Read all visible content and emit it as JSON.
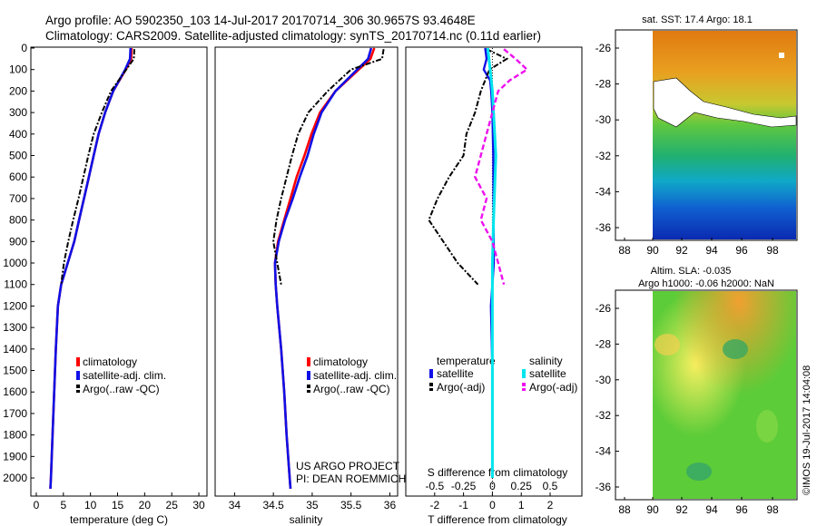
{
  "header": {
    "line1": "Argo profile: AO 5902350_103 14-Jul-2017 20170714_306 30.9657S 93.4648E",
    "line2": "Climatology: CARS2009. Satellite-adjusted climatology: synTS_20170714.nc (0.11d earlier)"
  },
  "colors": {
    "climatology": "#ff0000",
    "satellite_clim": "#1010e6",
    "argo": "#000000",
    "temp_satellite": "#1010e6",
    "sal_satellite": "#00e5ee",
    "sal_argo": "#ee10ee"
  },
  "depth_axis": {
    "ticks": [
      0,
      100,
      200,
      300,
      400,
      500,
      600,
      700,
      800,
      900,
      1000,
      1100,
      1200,
      1300,
      1400,
      1500,
      1600,
      1700,
      1800,
      1900,
      2000
    ],
    "range": [
      0,
      2080
    ]
  },
  "legend_profile": {
    "climatology": "climatology",
    "satellite": "satellite-adj. clim.",
    "argo": "Argo(..raw -QC)"
  },
  "legend_diff": {
    "temperature_heading": "temperature",
    "salinity_heading": "salinity",
    "temp_satellite": "satellite",
    "temp_argo": "Argo(-adj)",
    "sal_satellite": "satellite",
    "sal_argo": "Argo(-adj)"
  },
  "credits": {
    "project": "US ARGO PROJECT",
    "pi": "PI: DEAN ROEMMICH"
  },
  "maps": {
    "sst_title": "sat. SST: 17.4  Argo: 18.1",
    "sla_title1": "Altim. SLA: -0.035",
    "sla_title2": "Argo h1000: -0.06 h2000: NaN",
    "imos_stamp": "©IMOS 19-Jul-2017 14:04:08",
    "lon_ticks": [
      "88",
      "90",
      "92",
      "94",
      "96",
      "98"
    ],
    "lat_ticks": [
      "-26",
      "-28",
      "-30",
      "-32",
      "-34",
      "-36"
    ]
  },
  "chart_data": [
    {
      "type": "line",
      "xlabel": "temperature (deg C)",
      "ylabel": "",
      "xlim": [
        -1,
        31.5
      ],
      "ylim": [
        2080,
        0
      ],
      "xticks": [
        0,
        5,
        10,
        15,
        20,
        25,
        30
      ],
      "series": [
        {
          "name": "climatology",
          "depth": [
            0,
            50,
            100,
            200,
            300,
            400,
            500,
            600,
            700,
            800,
            900,
            1000,
            1100,
            1200,
            1400,
            1600,
            1800,
            2000,
            2050
          ],
          "values": [
            17.6,
            17.5,
            16.5,
            14.2,
            12.7,
            11.5,
            10.6,
            9.7,
            8.8,
            7.9,
            7.0,
            5.8,
            4.6,
            4.0,
            3.6,
            3.3,
            3.0,
            2.7,
            2.6
          ]
        },
        {
          "name": "satellite-adj. clim.",
          "depth": [
            0,
            50,
            100,
            200,
            300,
            400,
            500,
            600,
            700,
            800,
            900,
            1000,
            1100,
            1200,
            1400,
            1600,
            1800,
            2000,
            2050
          ],
          "values": [
            17.4,
            17.3,
            16.4,
            14.2,
            12.7,
            11.5,
            10.6,
            9.7,
            8.8,
            7.9,
            7.0,
            5.8,
            4.6,
            4.0,
            3.6,
            3.3,
            3.0,
            2.7,
            2.6
          ]
        },
        {
          "name": "Argo(..raw -QC)",
          "depth": [
            5,
            50,
            100,
            200,
            300,
            400,
            500,
            600,
            700,
            800,
            900,
            1000,
            1100
          ],
          "values": [
            18.1,
            18.0,
            16.6,
            13.8,
            12.1,
            10.6,
            9.6,
            8.7,
            7.8,
            6.8,
            5.9,
            5.1,
            4.6
          ]
        }
      ]
    },
    {
      "type": "line",
      "xlabel": "salinity",
      "ylabel": "",
      "xlim": [
        33.75,
        36.1
      ],
      "ylim": [
        2080,
        0
      ],
      "xticks": [
        34,
        34.5,
        35,
        35.5,
        36
      ],
      "series": [
        {
          "name": "climatology",
          "depth": [
            0,
            50,
            100,
            200,
            300,
            400,
            500,
            600,
            700,
            800,
            900,
            1000,
            1100,
            1200,
            1400,
            1600,
            1800,
            2000,
            2050
          ],
          "values": [
            35.8,
            35.75,
            35.6,
            35.3,
            35.1,
            34.99,
            34.9,
            34.8,
            34.72,
            34.64,
            34.56,
            34.52,
            34.53,
            34.55,
            34.6,
            34.64,
            34.67,
            34.71,
            34.72
          ]
        },
        {
          "name": "satellite-adj. clim.",
          "depth": [
            0,
            50,
            100,
            200,
            300,
            400,
            500,
            600,
            700,
            800,
            900,
            1000,
            1100,
            1200,
            1400,
            1600,
            1800,
            2000,
            2050
          ],
          "values": [
            35.76,
            35.72,
            35.58,
            35.3,
            35.12,
            35.02,
            34.94,
            34.84,
            34.75,
            34.65,
            34.57,
            34.52,
            34.53,
            34.55,
            34.6,
            34.64,
            34.67,
            34.71,
            34.72
          ]
        },
        {
          "name": "Argo(..raw -QC)",
          "depth": [
            5,
            50,
            100,
            200,
            300,
            400,
            500,
            600,
            700,
            800,
            900,
            1000,
            1100
          ],
          "values": [
            35.92,
            35.9,
            35.5,
            35.2,
            34.95,
            34.82,
            34.74,
            34.67,
            34.6,
            34.54,
            34.5,
            34.55,
            34.6
          ]
        }
      ]
    },
    {
      "type": "line",
      "xlabel": "T difference from climatology",
      "xlabel_top": "S difference from climatology",
      "ylabel": "",
      "xlim": [
        -3,
        3.1
      ],
      "ylim": [
        2080,
        0
      ],
      "xticks_T": [
        -2,
        -1,
        0,
        1,
        2
      ],
      "xticks_S": [
        -0.5,
        -0.25,
        0,
        0.25,
        0.5
      ],
      "series": [
        {
          "name": "temperature satellite",
          "depth": [
            0,
            50,
            100,
            150,
            200,
            300,
            500,
            800,
            1000,
            1200,
            1500,
            2000
          ],
          "values": [
            -0.25,
            -0.2,
            -0.3,
            -0.08,
            -0.04,
            0.0,
            0.03,
            0.04,
            0.05,
            -0.05,
            0.0,
            0.0
          ]
        },
        {
          "name": "temperature Argo(-adj)",
          "depth": [
            5,
            50,
            100,
            200,
            300,
            400,
            500,
            600,
            700,
            800,
            900,
            1000,
            1100
          ],
          "values": [
            -0.2,
            0.5,
            -0.1,
            -0.4,
            -0.6,
            -0.9,
            -1.0,
            -1.5,
            -1.9,
            -2.2,
            -1.7,
            -1.2,
            -0.5
          ]
        },
        {
          "name": "salinity satellite",
          "depth": [
            0,
            100,
            200,
            300,
            500,
            800,
            1000,
            1500,
            2000
          ],
          "values": [
            -0.04,
            -0.02,
            0.0,
            0.01,
            0.03,
            0.01,
            0.0,
            0.0,
            0.0
          ]
        },
        {
          "name": "salinity Argo(-adj)",
          "depth": [
            5,
            50,
            100,
            150,
            200,
            400,
            600,
            700,
            800,
            900,
            1000,
            1100
          ],
          "values": [
            0.1,
            0.2,
            0.3,
            0.15,
            0.05,
            -0.05,
            -0.15,
            -0.05,
            -0.1,
            0.0,
            0.05,
            0.1
          ]
        }
      ]
    }
  ]
}
